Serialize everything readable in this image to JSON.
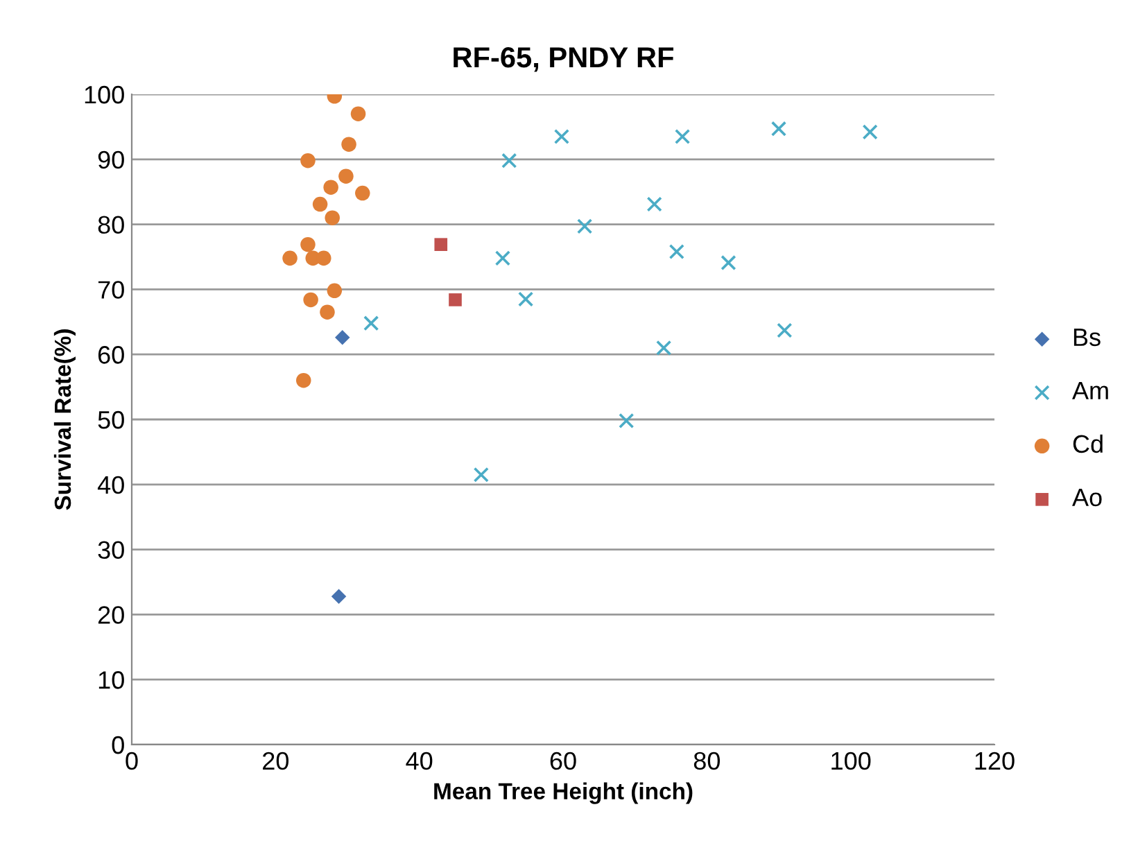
{
  "chart_data": {
    "type": "scatter",
    "title": "RF-65, PNDY RF",
    "xlabel": "Mean Tree Height (inch)",
    "ylabel": "Survival Rate(%)",
    "xlim": [
      0,
      120
    ],
    "xticks": [
      0,
      20,
      40,
      60,
      80,
      100,
      120
    ],
    "ylim": [
      0,
      100
    ],
    "yticks": [
      0,
      10,
      20,
      30,
      40,
      50,
      60,
      70,
      80,
      90,
      100
    ],
    "grid": "y",
    "legend": "right",
    "series": [
      {
        "name": "Bs",
        "color": "#4672b0",
        "marker": "diamond",
        "x": [
          29.3,
          28.8
        ],
        "values": [
          62.6,
          22.8
        ]
      },
      {
        "name": "Am",
        "color": "#4bacc6",
        "marker": "cross",
        "x": [
          33.3,
          59.8,
          52.5,
          76.6,
          90.0,
          102.7,
          72.7,
          63.0,
          51.6,
          75.8,
          83.0,
          54.8,
          90.8,
          74.0,
          68.8,
          48.6
        ],
        "values": [
          64.8,
          93.5,
          89.8,
          93.5,
          94.7,
          94.2,
          83.1,
          79.7,
          74.8,
          75.8,
          74.1,
          68.5,
          63.7,
          61.0,
          49.8,
          41.5
        ]
      },
      {
        "name": "Cd",
        "color": "#e07f36",
        "marker": "circle",
        "x": [
          28.2,
          31.5,
          30.2,
          24.5,
          29.8,
          27.7,
          32.1,
          26.2,
          27.9,
          24.5,
          22.0,
          25.2,
          26.7,
          28.2,
          24.9,
          27.2,
          23.9
        ],
        "values": [
          99.7,
          97.0,
          92.3,
          89.8,
          87.4,
          85.7,
          84.8,
          83.1,
          81.0,
          76.9,
          74.8,
          74.8,
          74.8,
          69.8,
          68.4,
          66.5,
          56.0
        ]
      },
      {
        "name": "Ao",
        "color": "#c0504d",
        "marker": "square",
        "x": [
          43.0,
          45.0
        ],
        "values": [
          76.9,
          68.4
        ]
      }
    ]
  }
}
